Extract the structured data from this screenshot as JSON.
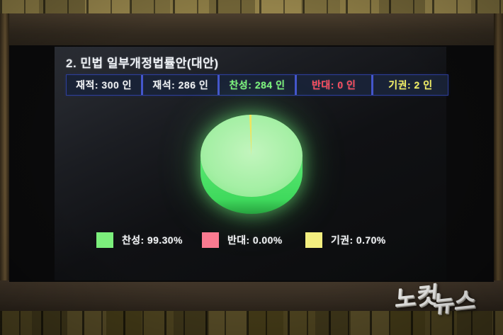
{
  "screen": {
    "agenda_title": "2. 민법 일부개정법률안(대안)",
    "stats": [
      {
        "label": "재적",
        "value": 300,
        "unit": "인",
        "text": "재적: 300 인",
        "color": "#f0f2f4"
      },
      {
        "label": "재석",
        "value": 286,
        "unit": "인",
        "text": "재석: 286 인",
        "color": "#f0f2f4"
      },
      {
        "label": "찬성",
        "value": 284,
        "unit": "인",
        "text": "찬성: 284 인",
        "color": "#7cf87c"
      },
      {
        "label": "반대",
        "value": 0,
        "unit": "인",
        "text": "반대:  0 인",
        "color": "#ff4d60"
      },
      {
        "label": "기권",
        "value": 2,
        "unit": "인",
        "text": "기권:  2 인",
        "color": "#f5f263"
      }
    ]
  },
  "chart_data": {
    "type": "pie",
    "style": "3d-cylinder",
    "labels": [
      "찬성",
      "반대",
      "기권"
    ],
    "values": [
      99.3,
      0.0,
      0.7
    ],
    "unit": "%",
    "colors": [
      "#7cef7c",
      "#fa7a90",
      "#f3ee7f"
    ],
    "slice_colors_top": [
      "#9ff0a0",
      "#fa7a90",
      "#f0e55e"
    ],
    "side_color": "#3fd95c",
    "start_angle_deg": -90,
    "legend_position": "bottom",
    "legend": [
      {
        "label": "찬성: 99.30%",
        "color": "#7cef7c"
      },
      {
        "label": "반대: 0.00%",
        "color": "#fa7a90"
      },
      {
        "label": "기권: 0.70%",
        "color": "#f3ee7f"
      }
    ]
  },
  "watermark": {
    "text": "노컷뉴스",
    "part1": "노컷",
    "part2": "뉴스"
  }
}
